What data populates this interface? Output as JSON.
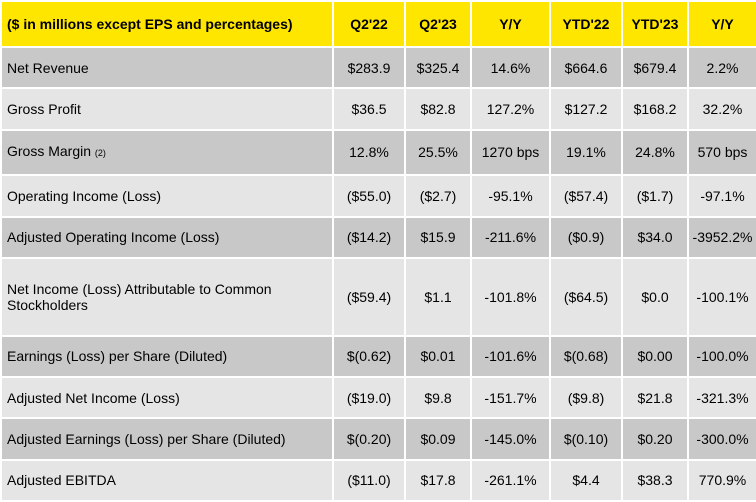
{
  "header": {
    "label": "($ in millions except EPS and percentages)",
    "columns": [
      "Q2'22",
      "Q2'23",
      "Y/Y",
      "YTD'22",
      "YTD'23",
      "Y/Y"
    ]
  },
  "rows": [
    {
      "label": "Net Revenue",
      "footnote": "",
      "values": [
        "$283.9",
        "$325.4",
        "14.6%",
        "$664.6",
        "$679.4",
        "2.2%"
      ]
    },
    {
      "label": "Gross Profit",
      "footnote": "",
      "values": [
        "$36.5",
        "$82.8",
        "127.2%",
        "$127.2",
        "$168.2",
        "32.2%"
      ]
    },
    {
      "label": "Gross Margin",
      "footnote": "(2)",
      "values": [
        "12.8%",
        "25.5%",
        "1270 bps",
        "19.1%",
        "24.8%",
        "570 bps"
      ]
    },
    {
      "label": "Operating Income (Loss)",
      "footnote": "",
      "values": [
        "($55.0)",
        "($2.7)",
        "-95.1%",
        "($57.4)",
        "($1.7)",
        "-97.1%"
      ]
    },
    {
      "label": "Adjusted Operating Income (Loss)",
      "footnote": "",
      "values": [
        "($14.2)",
        "$15.9",
        "-211.6%",
        "($0.9)",
        "$34.0",
        "-3952.2%"
      ]
    },
    {
      "label": "Net Income (Loss) Attributable to Common Stockholders",
      "footnote": "",
      "values": [
        "($59.4)",
        "$1.1",
        "-101.8%",
        "($64.5)",
        "$0.0",
        "-100.1%"
      ]
    },
    {
      "label": "Earnings (Loss) per Share (Diluted)",
      "footnote": "",
      "values": [
        "$(0.62)",
        "$0.01",
        "-101.6%",
        "$(0.68)",
        "$0.00",
        "-100.0%"
      ]
    },
    {
      "label": "Adjusted Net Income (Loss)",
      "footnote": "",
      "values": [
        "($19.0)",
        "$9.8",
        "-151.7%",
        "($9.8)",
        "$21.8",
        "-321.3%"
      ]
    },
    {
      "label": "Adjusted Earnings (Loss) per Share (Diluted)",
      "footnote": "",
      "values": [
        "$(0.20)",
        "$0.09",
        "-145.0%",
        "$(0.10)",
        "$0.20",
        "-300.0%"
      ]
    },
    {
      "label": "Adjusted EBITDA",
      "footnote": "",
      "values": [
        "($11.0)",
        "$17.8",
        "-261.1%",
        "$4.4",
        "$38.3",
        "770.9%"
      ]
    }
  ],
  "colors": {
    "header_bg": "#ffe600",
    "row_dark": "#c8c8c8",
    "row_light": "#e5e5e5"
  }
}
